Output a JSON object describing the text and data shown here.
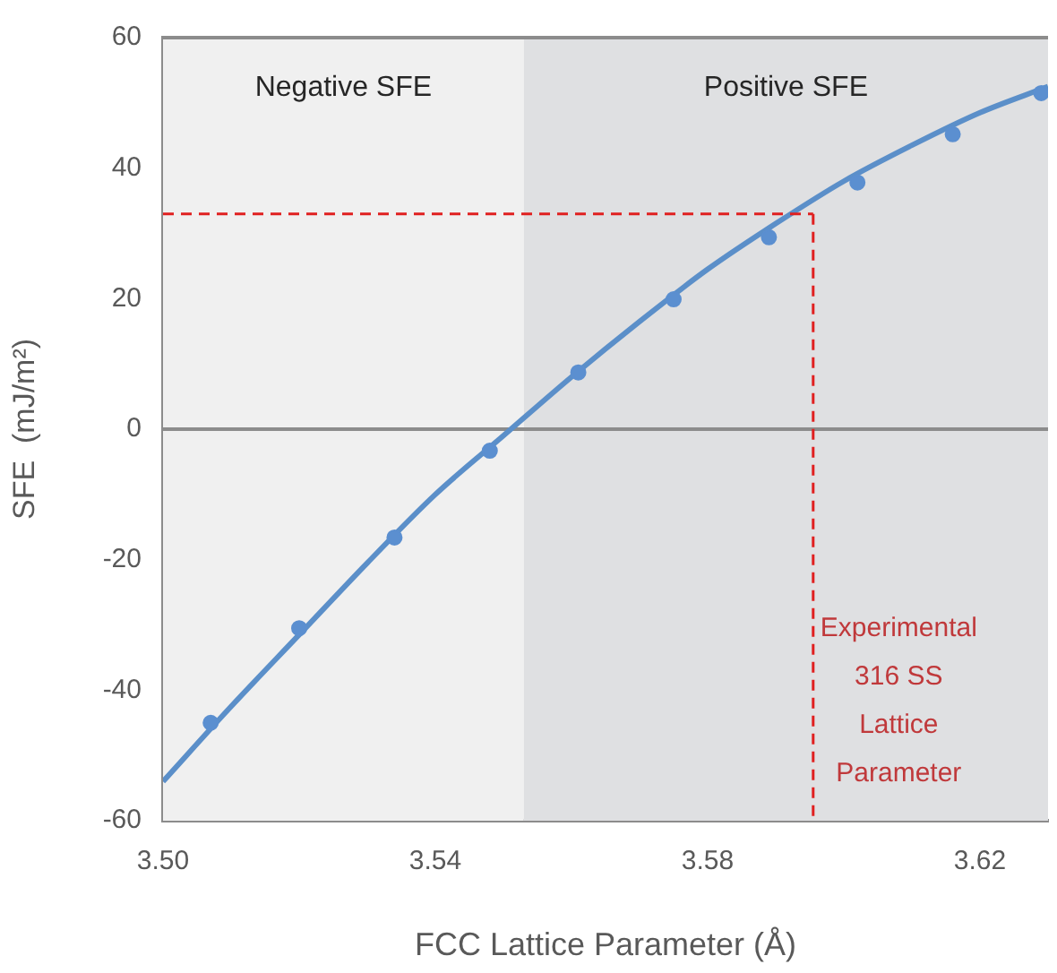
{
  "chart_data": {
    "type": "scatter",
    "xlabel": "FCC Lattice Parameter (Å)",
    "ylabel": "SFE  (mJ/m²)",
    "xlim": [
      3.5,
      3.63
    ],
    "xticks": [
      {
        "value": 3.5,
        "label": "3.50"
      },
      3.54,
      3.58,
      3.62
    ],
    "ylim": [
      -60,
      60
    ],
    "yticks": [
      -60,
      -40,
      -20,
      0,
      20,
      40,
      60
    ],
    "grid": false,
    "legend": false,
    "series": [
      {
        "marker": "circle",
        "color": "#5b8fd0",
        "x": [
          3.507,
          3.52,
          3.534,
          3.548,
          3.561,
          3.575,
          3.589,
          3.602,
          3.616,
          3.629
        ],
        "values": [
          -45,
          -30.5,
          -16.6,
          -3.3,
          8.7,
          19.9,
          29.4,
          37.8,
          45.2,
          51.5
        ]
      },
      {
        "type": "line",
        "marker": "none",
        "color": "#5b8fc9",
        "x": [
          3.5,
          3.51,
          3.52,
          3.53,
          3.54,
          3.55,
          3.56,
          3.57,
          3.58,
          3.59,
          3.6,
          3.61,
          3.62,
          3.63
        ],
        "values": [
          -54,
          -42.5,
          -31.5,
          -20.5,
          -10,
          -1,
          8,
          16.5,
          24.5,
          31.5,
          38,
          43.5,
          48.5,
          52.5
        ]
      }
    ],
    "bands": [
      {
        "axis": "x",
        "from": 3.5,
        "to": 3.553,
        "label": "Negative SFE",
        "color": "#f0f0f0"
      },
      {
        "axis": "x",
        "from": 3.553,
        "to": 3.63,
        "label": "Positive SFE",
        "color": "#dfe0e2"
      }
    ],
    "ref_lines": [
      {
        "axis": "y",
        "value": 0,
        "color": "#8c8c8c",
        "line_style": "solid"
      },
      {
        "axis": "y",
        "value": 33,
        "color": "#e02020",
        "line_style": "dashed"
      },
      {
        "axis": "x",
        "value": 3.5955,
        "label": "Experimental\n316 SS\nLattice\nParameter",
        "color": "#e02020",
        "line_style": "dashed"
      }
    ]
  }
}
